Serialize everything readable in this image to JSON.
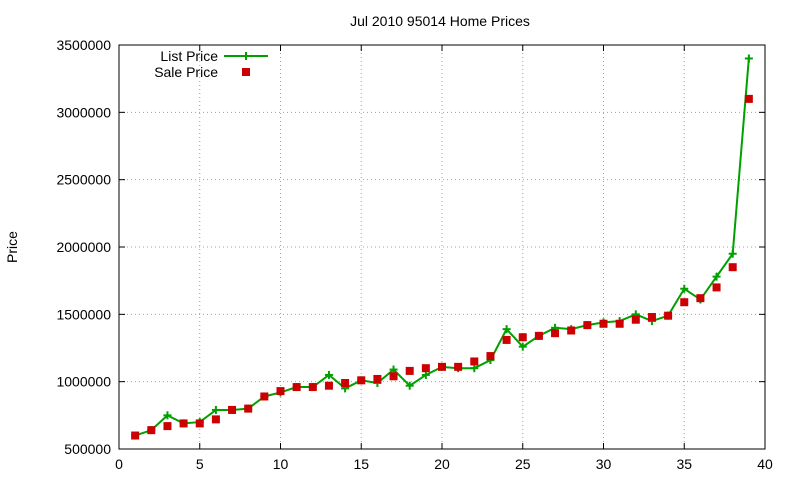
{
  "chart_data": {
    "type": "line",
    "title": "Jul 2010 95014 Home Prices",
    "ylabel": "Price",
    "xlabel": "",
    "xlim": [
      0,
      40
    ],
    "ylim": [
      500000,
      3500000
    ],
    "xticks": [
      0,
      5,
      10,
      15,
      20,
      25,
      30,
      35,
      40
    ],
    "yticks": [
      500000,
      1000000,
      1500000,
      2000000,
      2500000,
      3000000,
      3500000
    ],
    "grid": true,
    "legend_position": "top-left",
    "colors": {
      "list": "#00a000",
      "sale": "#cc0000"
    },
    "x": [
      1,
      2,
      3,
      4,
      5,
      6,
      7,
      8,
      9,
      10,
      11,
      12,
      13,
      14,
      15,
      16,
      17,
      18,
      19,
      20,
      21,
      22,
      23,
      24,
      25,
      26,
      27,
      28,
      29,
      30,
      31,
      32,
      33,
      34,
      35,
      36,
      37,
      38,
      39
    ],
    "series": [
      {
        "name": "List Price",
        "style": "line-plus",
        "values": [
          600000,
          640000,
          750000,
          690000,
          700000,
          790000,
          790000,
          800000,
          890000,
          920000,
          960000,
          960000,
          1050000,
          950000,
          1010000,
          990000,
          1090000,
          970000,
          1050000,
          1110000,
          1100000,
          1100000,
          1160000,
          1390000,
          1260000,
          1340000,
          1400000,
          1390000,
          1420000,
          1440000,
          1450000,
          1500000,
          1450000,
          1490000,
          1690000,
          1610000,
          1780000,
          1950000,
          3400000
        ]
      },
      {
        "name": "Sale Price",
        "style": "square",
        "values": [
          600000,
          640000,
          670000,
          690000,
          690000,
          720000,
          790000,
          800000,
          890000,
          930000,
          960000,
          960000,
          970000,
          990000,
          1010000,
          1020000,
          1040000,
          1080000,
          1100000,
          1110000,
          1110000,
          1150000,
          1190000,
          1310000,
          1330000,
          1340000,
          1360000,
          1380000,
          1420000,
          1430000,
          1430000,
          1460000,
          1480000,
          1490000,
          1590000,
          1620000,
          1700000,
          1850000,
          3100000
        ]
      }
    ]
  }
}
